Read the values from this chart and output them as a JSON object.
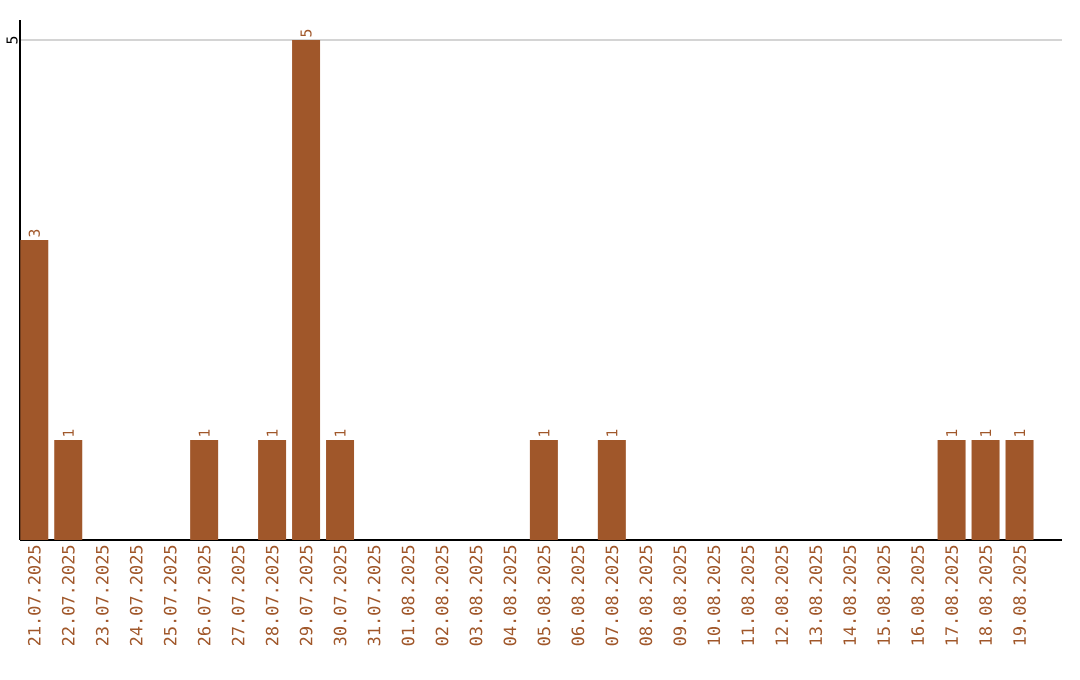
{
  "chart_data": {
    "type": "bar",
    "categories": [
      "21.07.2025",
      "22.07.2025",
      "23.07.2025",
      "24.07.2025",
      "25.07.2025",
      "26.07.2025",
      "27.07.2025",
      "28.07.2025",
      "29.07.2025",
      "30.07.2025",
      "31.07.2025",
      "01.08.2025",
      "02.08.2025",
      "03.08.2025",
      "04.08.2025",
      "05.08.2025",
      "06.08.2025",
      "07.08.2025",
      "08.08.2025",
      "09.08.2025",
      "10.08.2025",
      "11.08.2025",
      "12.08.2025",
      "13.08.2025",
      "14.08.2025",
      "15.08.2025",
      "16.08.2025",
      "17.08.2025",
      "18.08.2025",
      "19.08.2025"
    ],
    "values": [
      3,
      1,
      0,
      0,
      0,
      1,
      0,
      1,
      5,
      1,
      0,
      0,
      0,
      0,
      0,
      1,
      0,
      1,
      0,
      0,
      0,
      0,
      0,
      0,
      0,
      0,
      0,
      1,
      1,
      1
    ],
    "value_labels": [
      "3",
      "1",
      null,
      null,
      null,
      "1",
      null,
      "1",
      "5",
      "1",
      null,
      null,
      null,
      null,
      null,
      "1",
      null,
      "1",
      null,
      null,
      null,
      null,
      null,
      null,
      null,
      null,
      null,
      "1",
      "1",
      "1"
    ],
    "color": "#a0572a",
    "ylim": [
      0,
      5.2
    ],
    "yticks": [
      5
    ],
    "grid": "y"
  }
}
